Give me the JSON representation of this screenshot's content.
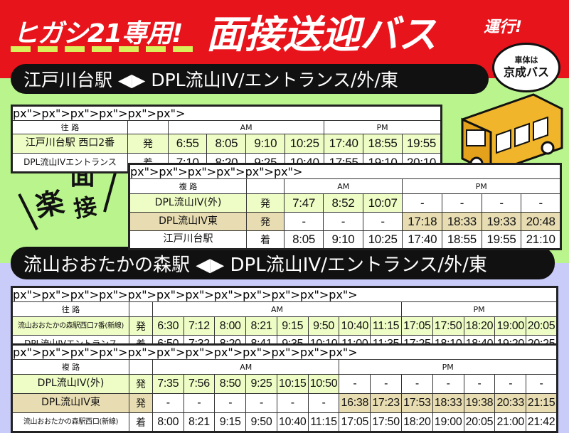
{
  "header": {
    "title_part1": "ヒガシ21専用!",
    "title_part2": "面接送迎バス",
    "title_part3": "運行!"
  },
  "bubble": {
    "line1": "車体は",
    "line2": "京成バス"
  },
  "badge": {
    "chars": [
      "楽",
      "面",
      "接"
    ]
  },
  "colors": {
    "red": "#e8141c",
    "green_bg": "#b9f48d",
    "lavender_bg": "#c9ccf9",
    "highlight_green": "#eefcc5",
    "highlight_tan": "#e8ddb2"
  },
  "sections": [
    {
      "route_title": "江戸川台駅 ◀▶ DPL流山IV/エントランス/外/東",
      "tables": [
        {
          "header": "往 路",
          "am_label": "AM",
          "pm_label": "PM",
          "am_count": 4,
          "pm_count": 3,
          "rows": [
            {
              "stop": "江戸川台駅 西口2番",
              "dir": "発",
              "style": "g",
              "times": [
                "6:55",
                "8:05",
                "9:10",
                "10:25",
                "17:40",
                "18:55",
                "19:55"
              ]
            },
            {
              "stop": "DPL流山IVエントランス",
              "dir": "着",
              "style": "w",
              "times": [
                "7:10",
                "8:20",
                "9:25",
                "10:40",
                "17:55",
                "19:10",
                "20:10"
              ]
            }
          ]
        },
        {
          "header": "複 路",
          "am_label": "AM",
          "pm_label": "PM",
          "am_count": 3,
          "pm_count": 4,
          "rows": [
            {
              "stop": "DPL流山IV(外)",
              "dir": "発",
              "style": "g",
              "times": [
                "7:47",
                "8:52",
                "10:07",
                "-",
                "-",
                "-",
                "-"
              ],
              "hl": [
                0,
                3
              ]
            },
            {
              "stop": "DPL流山IV東",
              "dir": "発",
              "style": "t",
              "times": [
                "-",
                "-",
                "-",
                "17:18",
                "18:33",
                "19:33",
                "20:48"
              ],
              "hl": [
                3,
                7
              ]
            },
            {
              "stop": "江戸川台駅",
              "dir": "着",
              "style": "w",
              "times": [
                "8:05",
                "9:10",
                "10:25",
                "17:40",
                "18:55",
                "19:55",
                "21:10"
              ]
            }
          ]
        }
      ]
    },
    {
      "route_title": "流山おおたかの森駅 ◀▶ DPL流山IV/エントランス/外/東",
      "tables": [
        {
          "header": "往 路",
          "am_label": "AM",
          "pm_label": "PM",
          "am_count": 8,
          "pm_count": 5,
          "rows": [
            {
              "stop": "流山おおたかの森駅西口7番(新線)",
              "dir": "発",
              "style": "g",
              "times": [
                "6:30",
                "7:12",
                "8:00",
                "8:21",
                "9:15",
                "9:50",
                "10:40",
                "11:15",
                "17:05",
                "17:50",
                "18:20",
                "19:00",
                "20:05"
              ]
            },
            {
              "stop": "DPL流山IVエントランス",
              "dir": "着",
              "style": "w",
              "times": [
                "6:50",
                "7:32",
                "8:20",
                "8:41",
                "9:35",
                "10:10",
                "11:00",
                "11:35",
                "17:25",
                "18:10",
                "18:40",
                "19:20",
                "20:25"
              ]
            }
          ]
        },
        {
          "header": "複 路",
          "am_label": "AM",
          "pm_label": "PM",
          "am_count": 6,
          "pm_count": 7,
          "rows": [
            {
              "stop": "DPL流山IV(外)",
              "dir": "発",
              "style": "g",
              "times": [
                "7:35",
                "7:56",
                "8:50",
                "9:25",
                "10:15",
                "10:50",
                "-",
                "-",
                "-",
                "-",
                "-",
                "-",
                "-"
              ],
              "hl": [
                0,
                6
              ]
            },
            {
              "stop": "DPL流山IV東",
              "dir": "発",
              "style": "t",
              "times": [
                "-",
                "-",
                "-",
                "-",
                "-",
                "-",
                "16:38",
                "17:23",
                "17:53",
                "18:33",
                "19:38",
                "20:33",
                "21:15"
              ],
              "hl": [
                6,
                13
              ]
            },
            {
              "stop": "流山おおたかの森駅西口(新線)",
              "dir": "着",
              "style": "w",
              "times": [
                "8:00",
                "8:21",
                "9:15",
                "9:50",
                "10:40",
                "11:15",
                "17:05",
                "17:50",
                "18:20",
                "19:00",
                "20:05",
                "21:00",
                "21:42"
              ]
            }
          ]
        }
      ]
    }
  ]
}
